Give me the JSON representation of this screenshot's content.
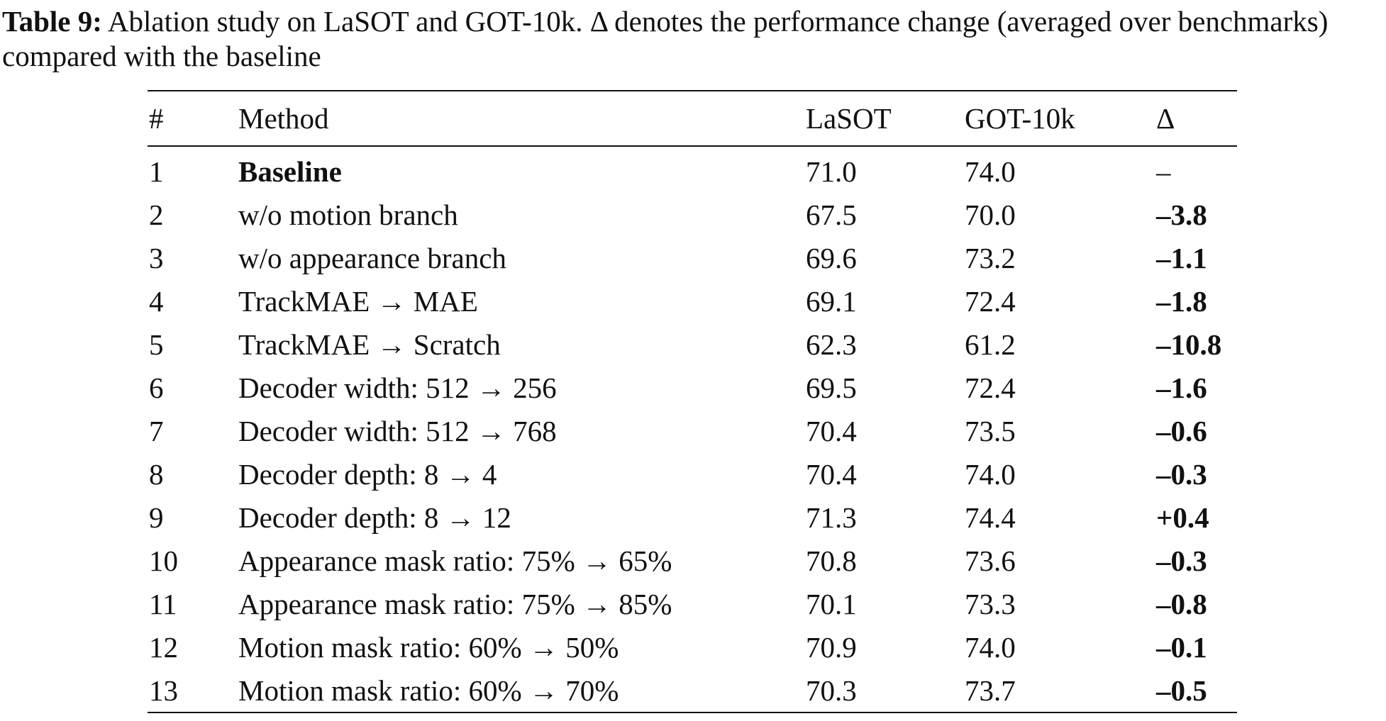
{
  "caption": {
    "label": "Table 9:",
    "text": "Ablation study on LaSOT and GOT-10k. Δ denotes the performance change (averaged over benchmarks) compared with the baseline"
  },
  "table": {
    "headers": [
      "#",
      "Method",
      "LaSOT",
      "GOT-10k",
      "Δ"
    ],
    "rows": [
      {
        "num": "1",
        "method": "Baseline",
        "method_bold": true,
        "lasot": "71.0",
        "got": "74.0",
        "delta": "–",
        "delta_bold": false
      },
      {
        "num": "2",
        "method": "w/o motion branch",
        "method_bold": false,
        "lasot": "67.5",
        "got": "70.0",
        "delta": "–3.8",
        "delta_bold": true
      },
      {
        "num": "3",
        "method": "w/o appearance branch",
        "method_bold": false,
        "lasot": "69.6",
        "got": "73.2",
        "delta": "–1.1",
        "delta_bold": true
      },
      {
        "num": "4",
        "method": "TrackMAE → MAE",
        "method_bold": false,
        "lasot": "69.1",
        "got": "72.4",
        "delta": "–1.8",
        "delta_bold": true
      },
      {
        "num": "5",
        "method": "TrackMAE → Scratch",
        "method_bold": false,
        "lasot": "62.3",
        "got": "61.2",
        "delta": "–10.8",
        "delta_bold": true
      },
      {
        "num": "6",
        "method": "Decoder width: 512 → 256",
        "method_bold": false,
        "lasot": "69.5",
        "got": "72.4",
        "delta": "–1.6",
        "delta_bold": true
      },
      {
        "num": "7",
        "method": "Decoder width: 512 → 768",
        "method_bold": false,
        "lasot": "70.4",
        "got": "73.5",
        "delta": "–0.6",
        "delta_bold": true
      },
      {
        "num": "8",
        "method": "Decoder depth: 8 → 4",
        "method_bold": false,
        "lasot": "70.4",
        "got": "74.0",
        "delta": "–0.3",
        "delta_bold": true
      },
      {
        "num": "9",
        "method": "Decoder depth: 8 → 12",
        "method_bold": false,
        "lasot": "71.3",
        "got": "74.4",
        "delta": "+0.4",
        "delta_bold": true
      },
      {
        "num": "10",
        "method": "Appearance mask ratio: 75% → 65%",
        "method_bold": false,
        "lasot": "70.8",
        "got": "73.6",
        "delta": "–0.3",
        "delta_bold": true
      },
      {
        "num": "11",
        "method": "Appearance mask ratio: 75% → 85%",
        "method_bold": false,
        "lasot": "70.1",
        "got": "73.3",
        "delta": "–0.8",
        "delta_bold": true
      },
      {
        "num": "12",
        "method": "Motion mask ratio: 60% → 50%",
        "method_bold": false,
        "lasot": "70.9",
        "got": "74.0",
        "delta": "–0.1",
        "delta_bold": true
      },
      {
        "num": "13",
        "method": "Motion mask ratio: 60% → 70%",
        "method_bold": false,
        "lasot": "70.3",
        "got": "73.7",
        "delta": "–0.5",
        "delta_bold": true
      }
    ]
  }
}
